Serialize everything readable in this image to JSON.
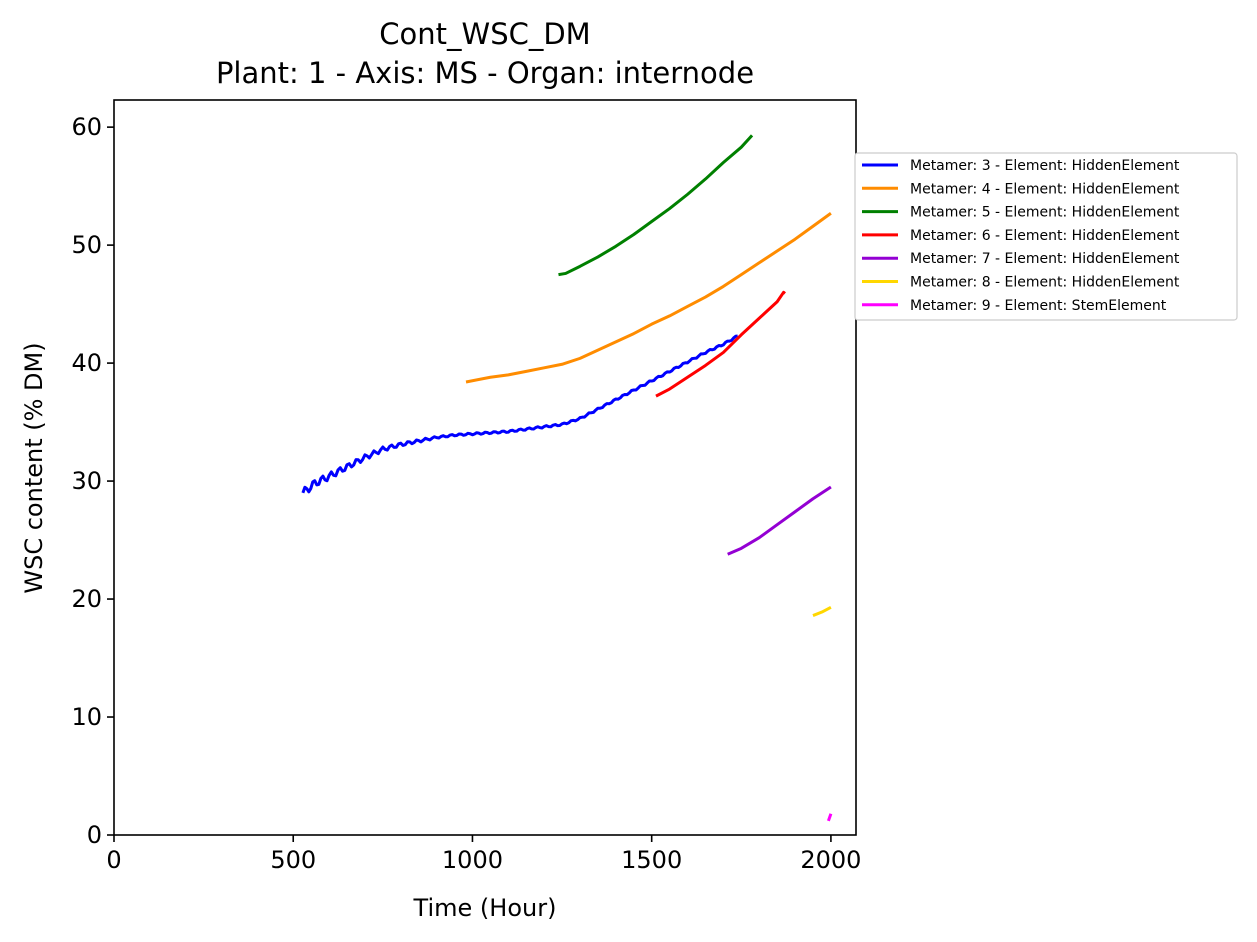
{
  "chart_data": {
    "type": "line",
    "title": "Cont_WSC_DM",
    "subtitle": "Plant: 1 - Axis: MS - Organ: internode",
    "xlabel": "Time (Hour)",
    "ylabel": "WSC content (% DM)",
    "xlim": [
      0,
      2070
    ],
    "ylim": [
      0,
      62.3
    ],
    "xticks": [
      0,
      500,
      1000,
      1500,
      2000
    ],
    "yticks": [
      0,
      10,
      20,
      30,
      40,
      50,
      60
    ],
    "grid": false,
    "legend_position": "outside-right",
    "series": [
      {
        "name": "Metamer: 3 - Element: HiddenElement",
        "color": "#0000ff",
        "points": [
          [
            527,
            29.0
          ],
          [
            560,
            29.8
          ],
          [
            600,
            30.4
          ],
          [
            650,
            31.2
          ],
          [
            700,
            32.0
          ],
          [
            750,
            32.7
          ],
          [
            800,
            33.1
          ],
          [
            850,
            33.4
          ],
          [
            900,
            33.7
          ],
          [
            950,
            33.9
          ],
          [
            1000,
            34.0
          ],
          [
            1100,
            34.2
          ],
          [
            1200,
            34.6
          ],
          [
            1250,
            34.8
          ],
          [
            1300,
            35.3
          ],
          [
            1350,
            36.1
          ],
          [
            1400,
            36.9
          ],
          [
            1450,
            37.7
          ],
          [
            1500,
            38.5
          ],
          [
            1550,
            39.3
          ],
          [
            1600,
            40.1
          ],
          [
            1650,
            40.9
          ],
          [
            1700,
            41.6
          ],
          [
            1740,
            42.3
          ]
        ],
        "wiggle": true
      },
      {
        "name": "Metamer: 4 - Element: HiddenElement",
        "color": "#ff8c00",
        "points": [
          [
            982,
            38.4
          ],
          [
            1050,
            38.8
          ],
          [
            1100,
            39.0
          ],
          [
            1150,
            39.3
          ],
          [
            1200,
            39.6
          ],
          [
            1250,
            39.9
          ],
          [
            1300,
            40.4
          ],
          [
            1350,
            41.1
          ],
          [
            1400,
            41.8
          ],
          [
            1450,
            42.5
          ],
          [
            1500,
            43.3
          ],
          [
            1550,
            44.0
          ],
          [
            1600,
            44.8
          ],
          [
            1650,
            45.6
          ],
          [
            1700,
            46.5
          ],
          [
            1750,
            47.5
          ],
          [
            1800,
            48.5
          ],
          [
            1850,
            49.5
          ],
          [
            1900,
            50.5
          ],
          [
            1950,
            51.6
          ],
          [
            2000,
            52.7
          ]
        ]
      },
      {
        "name": "Metamer: 5 - Element: HiddenElement",
        "color": "#008000",
        "points": [
          [
            1240,
            47.5
          ],
          [
            1260,
            47.6
          ],
          [
            1300,
            48.2
          ],
          [
            1350,
            49.0
          ],
          [
            1400,
            49.9
          ],
          [
            1450,
            50.9
          ],
          [
            1500,
            52.0
          ],
          [
            1550,
            53.1
          ],
          [
            1600,
            54.3
          ],
          [
            1650,
            55.6
          ],
          [
            1700,
            57.0
          ],
          [
            1750,
            58.3
          ],
          [
            1780,
            59.3
          ]
        ]
      },
      {
        "name": "Metamer: 6 - Element: HiddenElement",
        "color": "#ff0000",
        "points": [
          [
            1512,
            37.2
          ],
          [
            1550,
            37.8
          ],
          [
            1600,
            38.8
          ],
          [
            1650,
            39.8
          ],
          [
            1700,
            40.9
          ],
          [
            1750,
            42.4
          ],
          [
            1800,
            43.8
          ],
          [
            1850,
            45.2
          ],
          [
            1868,
            46.0
          ],
          [
            1872,
            45.9
          ]
        ]
      },
      {
        "name": "Metamer: 7 - Element: HiddenElement",
        "color": "#9400d3",
        "points": [
          [
            1712,
            23.8
          ],
          [
            1750,
            24.3
          ],
          [
            1800,
            25.2
          ],
          [
            1850,
            26.3
          ],
          [
            1900,
            27.4
          ],
          [
            1950,
            28.5
          ],
          [
            2000,
            29.5
          ]
        ]
      },
      {
        "name": "Metamer: 8 - Element: HiddenElement",
        "color": "#ffd700",
        "points": [
          [
            1950,
            18.6
          ],
          [
            1975,
            18.9
          ],
          [
            2000,
            19.3
          ]
        ]
      },
      {
        "name": "Metamer: 9 - Element: StemElement",
        "color": "#ff00ff",
        "points": [
          [
            1993,
            1.2
          ],
          [
            2000,
            1.8
          ]
        ]
      }
    ]
  }
}
